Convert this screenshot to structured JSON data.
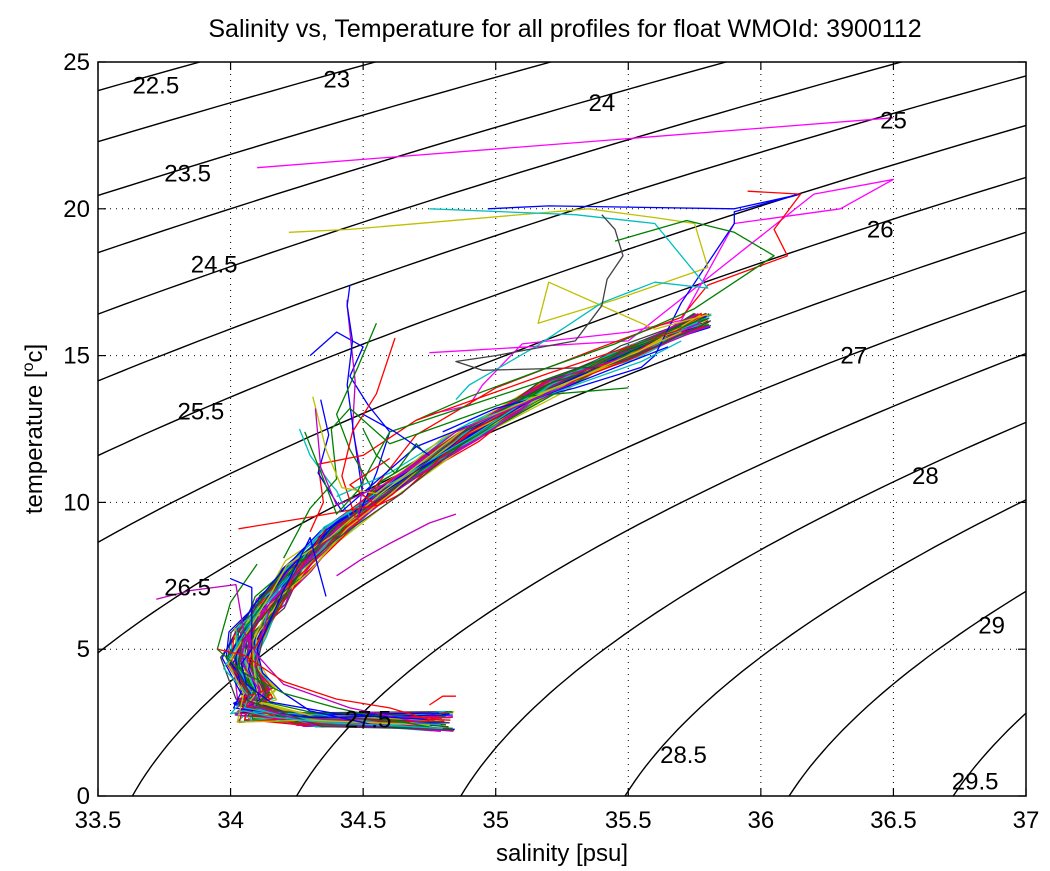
{
  "chart_data": {
    "type": "line",
    "title": "Salinity vs, Temperature for all profiles for float WMOId: 3900112",
    "xlabel": "salinity [psu]",
    "ylabel_main": "temperature [",
    "ylabel_sup": "o",
    "ylabel_end": "c]",
    "xlim": [
      33.5,
      37
    ],
    "ylim": [
      0,
      25
    ],
    "grid": true,
    "x_ticks": [
      33.5,
      34,
      34.5,
      35,
      35.5,
      36,
      36.5,
      37
    ],
    "x_tick_labels": [
      "33.5",
      "34",
      "34.5",
      "35",
      "35.5",
      "36",
      "36.5",
      "37"
    ],
    "y_ticks": [
      0,
      5,
      10,
      15,
      20,
      25
    ],
    "y_tick_labels": [
      "0",
      "5",
      "10",
      "15",
      "20",
      "25"
    ],
    "density_contours": [
      {
        "label": "22.5",
        "value": 22.5,
        "label_at": [
          33.63,
          24.2
        ]
      },
      {
        "label": "23",
        "value": 23.0,
        "label_at": [
          34.35,
          24.4
        ]
      },
      {
        "label": "23.5",
        "value": 23.5,
        "label_at": [
          33.75,
          21.2
        ]
      },
      {
        "label": "24",
        "value": 24.0,
        "label_at": [
          35.35,
          23.6
        ]
      },
      {
        "label": "24.5",
        "value": 24.5,
        "label_at": [
          33.85,
          18.1
        ]
      },
      {
        "label": "25",
        "value": 25.0,
        "label_at": [
          36.45,
          23.0
        ]
      },
      {
        "label": "25.5",
        "value": 25.5,
        "label_at": [
          33.8,
          13.1
        ]
      },
      {
        "label": "26",
        "value": 26.0,
        "label_at": [
          36.4,
          19.3
        ]
      },
      {
        "label": "26.5",
        "value": 26.5,
        "label_at": [
          33.75,
          7.1
        ]
      },
      {
        "label": "27",
        "value": 27.0,
        "label_at": [
          36.3,
          15.0
        ]
      },
      {
        "label": "27.5",
        "value": 27.5,
        "label_at": [
          34.43,
          2.6
        ]
      },
      {
        "label": "28",
        "value": 28.0,
        "label_at": [
          36.57,
          10.9
        ]
      },
      {
        "label": "28.5",
        "value": 28.5,
        "label_at": [
          35.62,
          1.4
        ]
      },
      {
        "label": "29",
        "value": 29.0,
        "label_at": [
          36.82,
          5.8
        ]
      },
      {
        "label": "29.5",
        "value": 29.5,
        "label_at": [
          36.72,
          0.5
        ]
      }
    ],
    "series_colors": [
      "#0000ff",
      "#008000",
      "#ff0000",
      "#00bfbf",
      "#bf00bf",
      "#bfbf00",
      "#404040"
    ],
    "series": [
      {
        "color": "#ff00ff",
        "x": [
          34.1,
          36.5
        ],
        "y": [
          21.4,
          23.1
        ]
      },
      {
        "color": "#ff00ff",
        "x": [
          34.75,
          35.5,
          36.2,
          36.5,
          36.3,
          35.9,
          35.7,
          35.5,
          35.1,
          34.95,
          34.9,
          34.75
        ],
        "y": [
          15.1,
          15.5,
          20.5,
          21.0,
          20.0,
          19.5,
          16.2,
          15.8,
          15.4,
          14.0,
          13.3,
          13.0
        ]
      },
      {
        "color": "#0000ff",
        "x": [
          34.97,
          35.2,
          35.9,
          36.15,
          35.9,
          35.9,
          35.7,
          35.6,
          35.55,
          35.3,
          35.0,
          34.8
        ],
        "y": [
          20.0,
          20.1,
          20.0,
          20.5,
          19.9,
          19.5,
          16.8,
          15.0,
          14.6,
          13.9,
          13.2,
          12.4
        ]
      },
      {
        "color": "#ff0000",
        "x": [
          35.95,
          36.15,
          36.05,
          36.1,
          35.8,
          35.7,
          35.4,
          35.0,
          34.7,
          34.5
        ],
        "y": [
          20.6,
          20.5,
          19.3,
          18.4,
          17.4,
          16.3,
          15.3,
          13.9,
          12.3,
          10.0
        ]
      },
      {
        "color": "#bfbf00",
        "x": [
          34.22,
          34.45,
          35.35,
          35.6,
          35.75,
          35.8,
          35.45,
          35.16,
          35.2,
          35.6,
          35.8
        ],
        "y": [
          19.2,
          19.3,
          20.0,
          19.7,
          19.5,
          18.0,
          16.9,
          16.1,
          17.5,
          15.9,
          16.4
        ]
      },
      {
        "color": "#00bfbf",
        "x": [
          34.75,
          35.3,
          35.6,
          35.8,
          35.6,
          35.4,
          35.15,
          34.9,
          34.85
        ],
        "y": [
          20.0,
          19.8,
          19.5,
          17.3,
          17.5,
          16.8,
          15.3,
          14.0,
          13.5
        ]
      },
      {
        "color": "#404040",
        "x": [
          35.4,
          35.45,
          35.48,
          35.42,
          35.4,
          35.3,
          35.0,
          34.85,
          34.95,
          35.4,
          35.6
        ],
        "y": [
          19.8,
          19.3,
          18.4,
          17.6,
          16.7,
          15.5,
          15.0,
          14.8,
          14.5,
          14.6,
          15.3
        ]
      },
      {
        "color": "#008000",
        "x": [
          35.45,
          35.72,
          35.9,
          36.05,
          35.95,
          35.75,
          35.6,
          35.45,
          35.2,
          34.9,
          34.7
        ],
        "y": [
          18.9,
          19.6,
          19.2,
          18.4,
          17.8,
          16.6,
          16.0,
          15.4,
          14.6,
          13.6,
          12.8
        ]
      },
      {
        "color": "#0000ff",
        "x": [
          34.3,
          34.4,
          34.5,
          34.45,
          34.52,
          34.6,
          34.55,
          34.48
        ],
        "y": [
          15.0,
          15.8,
          15.3,
          14.3,
          13.3,
          12.4,
          11.0,
          9.5
        ]
      },
      {
        "color": "#bf00bf",
        "x": [
          34.44,
          34.44,
          34.47,
          34.46,
          34.5,
          34.48
        ],
        "y": [
          16.9,
          16.7,
          14.1,
          12.5,
          10.7,
          9.4
        ]
      },
      {
        "color": "#0000ff",
        "x": [
          34.45,
          34.44,
          34.46,
          34.44,
          34.47,
          34.5
        ],
        "y": [
          17.4,
          16.7,
          15.5,
          14.0,
          12.0,
          10.2
        ]
      },
      {
        "color": "#00bfbf",
        "x": [
          34.26,
          34.3,
          34.38,
          34.4,
          34.43,
          34.45
        ],
        "y": [
          12.5,
          11.6,
          10.6,
          10.4,
          9.8,
          9.5
        ]
      },
      {
        "color": "#008000",
        "x": [
          34.55,
          34.48,
          34.4,
          34.45,
          34.55
        ],
        "y": [
          16.1,
          14.6,
          13.0,
          11.8,
          10.2
        ]
      },
      {
        "color": "#ff0000",
        "x": [
          34.62,
          34.55,
          34.46,
          34.42,
          34.47
        ],
        "y": [
          15.6,
          13.7,
          12.4,
          10.9,
          9.5
        ]
      },
      {
        "color": "#ff0000",
        "x": [
          34.03,
          34.3,
          34.55,
          34.45,
          34.6
        ],
        "y": [
          9.1,
          9.5,
          9.9,
          10.6,
          11.5
        ]
      },
      {
        "color": "#00bfbf",
        "x": [
          34.4,
          34.6,
          34.9,
          35.3,
          35.55,
          35.7
        ],
        "y": [
          10.2,
          11.0,
          12.7,
          14.0,
          14.8,
          15.5
        ]
      },
      {
        "color": "#008000",
        "x": [
          34.2,
          34.3,
          34.4,
          34.38,
          34.45,
          34.6,
          35.1,
          35.5
        ],
        "y": [
          8.1,
          9.8,
          10.8,
          12.5,
          13.2,
          12.0,
          13.6,
          13.9
        ]
      },
      {
        "color": "#ff0000",
        "x": [
          34.3,
          34.35,
          34.33,
          34.5,
          34.7,
          35.2,
          35.7
        ],
        "y": [
          9.0,
          10.0,
          11.3,
          11.6,
          12.8,
          14.4,
          15.9
        ]
      },
      {
        "color": "#0000ff",
        "x": [
          34.34,
          34.37,
          34.33,
          34.42,
          34.7,
          35.2,
          35.65
        ],
        "y": [
          13.5,
          12.3,
          11.0,
          9.7,
          11.9,
          13.7,
          15.3
        ]
      },
      {
        "color": "#bfbf00",
        "x": [
          34.31,
          34.36,
          34.42,
          34.55,
          34.8,
          35.25,
          35.7
        ],
        "y": [
          13.6,
          11.8,
          10.5,
          10.3,
          12.2,
          14.0,
          15.8
        ]
      },
      {
        "color": "#bf00bf",
        "x": [
          34.32,
          34.34,
          34.4,
          34.6,
          34.85,
          35.3
        ],
        "y": [
          13.2,
          11.2,
          9.9,
          10.7,
          12.4,
          14.1
        ]
      },
      {
        "color": "#008000",
        "x": [
          34.28,
          34.35,
          34.4,
          34.48,
          34.6,
          34.8,
          35.3,
          35.7
        ],
        "y": [
          12.4,
          10.8,
          9.6,
          10.4,
          12.4,
          13.0,
          14.5,
          16.0
        ]
      },
      {
        "color": "#0000ff",
        "x": [
          34.36,
          34.3,
          34.2,
          34.1,
          34.12,
          34.2,
          34.3,
          34.45,
          34.55
        ],
        "y": [
          6.8,
          8.8,
          7.0,
          5.0,
          4.2,
          3.5,
          2.9,
          2.6,
          2.4
        ]
      },
      {
        "color": "#008000",
        "x": [
          34.1,
          34.0,
          33.95,
          34.05,
          34.2,
          34.4,
          34.6,
          34.78
        ],
        "y": [
          7.9,
          6.6,
          5.0,
          4.2,
          3.5,
          3.0,
          2.6,
          2.3
        ]
      },
      {
        "color": "#bf00bf",
        "x": [
          33.72,
          33.85,
          34.02,
          34.05,
          34.1,
          34.2,
          34.45,
          34.72
        ],
        "y": [
          6.7,
          7.0,
          7.2,
          5.6,
          4.8,
          3.8,
          3.0,
          2.5
        ]
      },
      {
        "color": "#0000ff",
        "x": [
          34.0,
          34.08,
          34.08,
          34.04,
          34.06,
          34.15,
          34.4,
          34.75
        ],
        "y": [
          7.4,
          7.1,
          5.0,
          4.5,
          3.8,
          3.2,
          2.8,
          2.6
        ]
      },
      {
        "color": "#ff0000",
        "x": [
          33.95,
          34.05,
          34.2,
          34.4,
          34.6,
          34.75
        ],
        "y": [
          5.0,
          4.8,
          3.9,
          3.3,
          3.0,
          2.6
        ]
      },
      {
        "color": "#00bfbf",
        "x": [
          34.03,
          34.0,
          34.05,
          34.15,
          34.35,
          34.6,
          34.8
        ],
        "y": [
          3.1,
          2.8,
          2.9,
          2.7,
          2.5,
          2.4,
          2.3
        ]
      },
      {
        "color": "#ff0000",
        "x": [
          34.75,
          34.8,
          34.85
        ],
        "y": [
          3.1,
          3.4,
          3.4
        ]
      },
      {
        "color": "#008000",
        "x": [
          34.5,
          34.55,
          34.62,
          34.7,
          34.73
        ],
        "y": [
          12.5,
          11.6,
          11.0,
          12.0,
          11.7
        ]
      },
      {
        "color": "#bf00bf",
        "x": [
          34.4,
          34.5,
          34.6,
          34.75,
          34.85
        ],
        "y": [
          7.5,
          8.1,
          8.6,
          9.3,
          9.6
        ]
      },
      {
        "color": "#0000ff",
        "x": [
          34.5,
          34.62,
          34.75
        ],
        "y": [
          13.0,
          12.4,
          11.6
        ]
      }
    ],
    "main_band": {
      "comment_free": true,
      "spine_x": [
        34.1,
        34.04,
        34.07,
        34.15,
        34.25,
        34.4,
        34.6,
        34.9,
        35.2,
        35.5,
        35.78
      ],
      "spine_y": [
        3.5,
        4.5,
        5.5,
        6.6,
        7.8,
        9.0,
        10.5,
        12.3,
        13.9,
        15.1,
        16.2
      ],
      "tail_end_x": [
        34.72,
        34.85
      ],
      "tail_end_y": [
        2.2,
        2.9
      ],
      "count": 70
    }
  }
}
